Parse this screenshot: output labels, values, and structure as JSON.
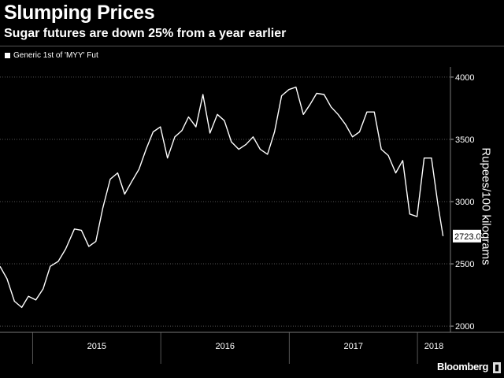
{
  "header": {
    "title": "Slumping Prices",
    "subtitle": "Sugar futures are down 25% from a year earlier"
  },
  "legend": {
    "label": "Generic 1st of 'MYY' Fut"
  },
  "brand": {
    "name": "Bloomberg"
  },
  "colors": {
    "background": "#000000",
    "line": "#ffffff",
    "grid": "#555555"
  },
  "chart_data": {
    "type": "line",
    "title": "Slumping Prices",
    "subtitle": "Sugar futures are down 25% from a year earlier",
    "ylabel": "Rupees/100 kilograms",
    "xlabel": "",
    "ylim": [
      1950,
      4050
    ],
    "yticks": [
      2000,
      2500,
      3000,
      3500,
      4000
    ],
    "grid": true,
    "legend_placement": "top-left",
    "x_axis_labels": [
      "2015",
      "2016",
      "2017",
      "2018"
    ],
    "last_value_label": "2723.00",
    "series": [
      {
        "name": "Generic 1st of 'MYY' Fut",
        "x": [
          "2014-09-30",
          "2014-10-20",
          "2014-11-10",
          "2014-12-01",
          "2014-12-20",
          "2015-01-10",
          "2015-01-31",
          "2015-02-20",
          "2015-03-15",
          "2015-04-05",
          "2015-04-30",
          "2015-05-20",
          "2015-06-10",
          "2015-06-30",
          "2015-07-20",
          "2015-08-10",
          "2015-08-31",
          "2015-09-20",
          "2015-10-10",
          "2015-10-31",
          "2015-11-20",
          "2015-12-10",
          "2015-12-31",
          "2016-01-20",
          "2016-02-10",
          "2016-03-01",
          "2016-03-20",
          "2016-04-10",
          "2016-04-30",
          "2016-05-20",
          "2016-06-10",
          "2016-06-30",
          "2016-07-20",
          "2016-08-10",
          "2016-08-31",
          "2016-09-20",
          "2016-10-10",
          "2016-10-31",
          "2016-11-20",
          "2016-12-10",
          "2016-12-31",
          "2017-01-20",
          "2017-02-10",
          "2017-03-01",
          "2017-03-20",
          "2017-04-10",
          "2017-04-30",
          "2017-05-20",
          "2017-06-10",
          "2017-06-30",
          "2017-07-20",
          "2017-08-10",
          "2017-08-31",
          "2017-09-20",
          "2017-10-10",
          "2017-10-31",
          "2017-11-20",
          "2017-12-10",
          "2017-12-31",
          "2018-01-20",
          "2018-02-10",
          "2018-02-28",
          "2018-03-15"
        ],
        "values": [
          2480,
          2380,
          2200,
          2150,
          2240,
          2210,
          2300,
          2480,
          2520,
          2620,
          2780,
          2770,
          2640,
          2680,
          2950,
          3180,
          3230,
          3060,
          3160,
          3260,
          3420,
          3560,
          3600,
          3350,
          3520,
          3570,
          3680,
          3600,
          3860,
          3550,
          3700,
          3650,
          3480,
          3420,
          3460,
          3520,
          3420,
          3380,
          3560,
          3850,
          3900,
          3920,
          3700,
          3780,
          3870,
          3860,
          3760,
          3700,
          3620,
          3520,
          3560,
          3720,
          3720,
          3420,
          3370,
          3230,
          3330,
          2900,
          2880,
          3350,
          3350,
          2980,
          2723
        ]
      }
    ]
  }
}
